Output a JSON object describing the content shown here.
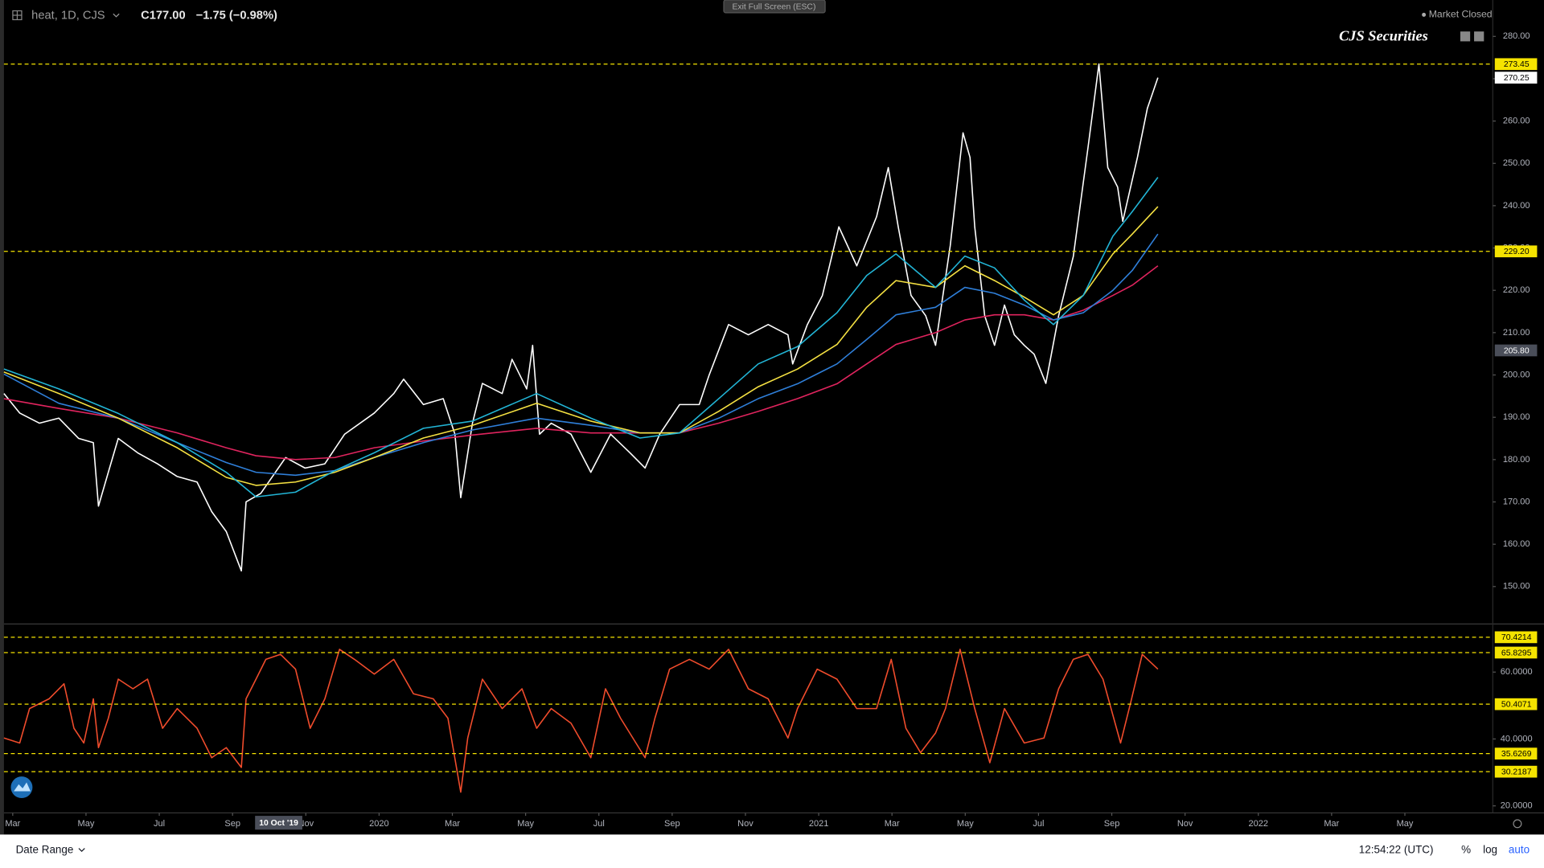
{
  "header": {
    "symbol": "heat, 1D, CJS",
    "close": "C177.00",
    "change": "−1.75 (−0.98%)",
    "exit_fullscreen": "Exit Full Screen (ESC)",
    "market_status": "Market Closed",
    "watermark": "CJS Securities"
  },
  "footer": {
    "date_range": "Date Range",
    "time": "12:54:22 (UTC)",
    "percent": "%",
    "log": "log",
    "auto": "auto"
  },
  "chart_data": [
    {
      "type": "line",
      "xlim": [
        -0.24,
        40.4
      ],
      "ylim": [
        141.4,
        288.6
      ],
      "grid": false,
      "yticks": [
        {
          "value": 150,
          "label": "150.00"
        },
        {
          "value": 160,
          "label": "160.00"
        },
        {
          "value": 170,
          "label": "170.00"
        },
        {
          "value": 180,
          "label": "180.00"
        },
        {
          "value": 190,
          "label": "190.00"
        },
        {
          "value": 200,
          "label": "200.00"
        },
        {
          "value": 210,
          "label": "210.00"
        },
        {
          "value": 220,
          "label": "220.00"
        },
        {
          "value": 230,
          "label": "230.00"
        },
        {
          "value": 240,
          "label": "240.00"
        },
        {
          "value": 250,
          "label": "250.00"
        },
        {
          "value": 260,
          "label": "260.00"
        },
        {
          "value": 270,
          "label": "270.00"
        },
        {
          "value": 280,
          "label": "280.00"
        }
      ],
      "levels": [
        {
          "value": 273.45,
          "label": "273.45"
        },
        {
          "value": 229.2,
          "label": "229.20"
        }
      ],
      "level_color": "#f5e300",
      "last_price": {
        "value": 270.25,
        "label": "270.25"
      },
      "crosshair_y": {
        "value": 205.8,
        "label": "205.80"
      },
      "series": [
        {
          "color": "#ffffff",
          "x": [
            -0.24,
            0.19,
            0.73,
            1.26,
            1.8,
            2.2,
            2.34,
            2.61,
            2.88,
            3.41,
            3.95,
            4.49,
            5.03,
            5.43,
            5.83,
            6.24,
            6.37,
            6.77,
            7.45,
            7.98,
            8.52,
            9.06,
            9.87,
            10.4,
            10.67,
            11.21,
            11.75,
            12.07,
            12.23,
            12.55,
            12.82,
            13.36,
            13.63,
            14.03,
            14.19,
            14.38,
            14.7,
            15.24,
            15.78,
            16.32,
            16.85,
            17.26,
            17.66,
            18.2,
            18.74,
            19.01,
            19.54,
            20.08,
            20.62,
            21.16,
            21.29,
            21.69,
            22.1,
            22.55,
            23.04,
            23.58,
            23.9,
            24.17,
            24.52,
            24.92,
            25.19,
            25.59,
            25.94,
            26.13,
            26.26,
            26.53,
            26.8,
            27.07,
            27.34,
            27.61,
            27.88,
            28.2,
            28.55,
            28.95,
            29.35,
            29.65,
            29.89,
            30.16,
            30.3,
            30.7,
            30.97,
            31.26
          ],
          "values": [
            195.6,
            191,
            188.6,
            189.8,
            185,
            184,
            169,
            177,
            185,
            181.6,
            179,
            176,
            174.7,
            167.7,
            163,
            153.7,
            170,
            172,
            180.5,
            178,
            179,
            186,
            191,
            195.6,
            199,
            193,
            194.4,
            186,
            171,
            188.6,
            198,
            195.6,
            203.7,
            196.7,
            207,
            186,
            188.6,
            186,
            177,
            186,
            181.6,
            178,
            186,
            193,
            193,
            200,
            211.9,
            209.5,
            211.9,
            209.5,
            202.6,
            211.9,
            218.8,
            235,
            225.8,
            237.4,
            249,
            235,
            218.8,
            214,
            207,
            230.5,
            257.2,
            251.4,
            235,
            214,
            207,
            216.5,
            209.5,
            207,
            204.9,
            198,
            214,
            228,
            253.7,
            273.45,
            249,
            244.4,
            236.3,
            251.4,
            263,
            270.25
          ]
        },
        {
          "color": "#e0245e",
          "x": [
            -0.24,
            1.26,
            2.88,
            4.49,
            5.83,
            6.64,
            7.72,
            8.79,
            9.87,
            11.21,
            12.55,
            14.3,
            15.78,
            17.12,
            18.2,
            19.27,
            20.35,
            21.42,
            22.5,
            23.31,
            24.11,
            25.19,
            25.99,
            26.8,
            27.61,
            28.41,
            29.22,
            30.03,
            30.56,
            31.26
          ],
          "values": [
            194.4,
            192.1,
            189.8,
            186.3,
            182.8,
            180.9,
            180,
            180.5,
            182.8,
            184.4,
            185.8,
            187.4,
            186.3,
            186.3,
            186.3,
            188.6,
            191.4,
            194.4,
            197.9,
            202.6,
            207.2,
            210,
            213,
            214.2,
            214.2,
            213,
            215.3,
            218.8,
            221.2,
            225.8
          ]
        },
        {
          "color": "#2f7fd9",
          "x": [
            -0.24,
            1.26,
            2.88,
            4.49,
            5.83,
            6.64,
            7.72,
            8.79,
            9.87,
            11.21,
            12.55,
            14.3,
            15.78,
            17.12,
            18.2,
            19.27,
            20.35,
            21.42,
            22.5,
            23.31,
            24.11,
            25.19,
            25.99,
            26.8,
            27.61,
            28.41,
            29.22,
            30.03,
            30.56,
            31.26
          ],
          "values": [
            200.2,
            193.3,
            189.8,
            184,
            179.3,
            177,
            176.3,
            177.4,
            180.5,
            184,
            187,
            189.8,
            188.1,
            186.3,
            186.3,
            189.8,
            194.4,
            197.9,
            202.6,
            208.4,
            214.2,
            216,
            220.7,
            219.3,
            216.5,
            213,
            214.7,
            220,
            224.7,
            233.3
          ]
        },
        {
          "color": "#f5e142",
          "x": [
            -0.24,
            1.26,
            2.88,
            4.49,
            5.83,
            6.64,
            7.72,
            8.79,
            9.87,
            11.21,
            12.55,
            14.3,
            15.78,
            17.12,
            18.2,
            19.27,
            20.35,
            21.42,
            22.5,
            23.31,
            24.11,
            25.19,
            25.99,
            26.8,
            27.61,
            28.41,
            29.22,
            30.03,
            30.56,
            31.26
          ],
          "values": [
            200.7,
            195.6,
            189.8,
            182.8,
            175.8,
            173.9,
            174.7,
            177,
            180.5,
            185.1,
            188.1,
            193.3,
            189.1,
            186.3,
            186.3,
            191.4,
            197.2,
            201.4,
            207.2,
            216,
            222.3,
            220.7,
            225.8,
            222.3,
            218.4,
            214.2,
            218.8,
            228.6,
            233.3,
            239.8
          ]
        },
        {
          "color": "#22b5d6",
          "x": [
            -0.24,
            1.26,
            2.88,
            4.49,
            5.83,
            6.64,
            7.72,
            8.79,
            9.87,
            11.21,
            12.55,
            14.3,
            15.78,
            17.12,
            18.2,
            19.27,
            20.35,
            21.42,
            22.5,
            23.31,
            24.11,
            25.19,
            25.99,
            26.8,
            27.61,
            28.41,
            29.22,
            30.03,
            30.56,
            31.26
          ],
          "values": [
            201.4,
            196.7,
            190.9,
            184,
            177,
            171.2,
            172.3,
            177.4,
            181.6,
            187.4,
            189.1,
            195.6,
            189.8,
            185.1,
            186.3,
            194.4,
            202.6,
            206.7,
            214.7,
            223.5,
            228.6,
            220.7,
            228.1,
            225.3,
            217.7,
            211.9,
            218.8,
            232.8,
            238.6,
            246.7
          ]
        }
      ]
    },
    {
      "type": "line",
      "xlim": [
        -0.24,
        40.4
      ],
      "ylim": [
        17.9,
        74.1
      ],
      "grid": false,
      "yticks": [
        {
          "value": 20,
          "label": "20.0000"
        },
        {
          "value": 40,
          "label": "40.0000"
        },
        {
          "value": 60,
          "label": "60.0000"
        }
      ],
      "levels": [
        {
          "value": 70.4214,
          "label": "70.4214"
        },
        {
          "value": 65.8295,
          "label": "65.8295"
        },
        {
          "value": 50.4071,
          "label": "50.4071"
        },
        {
          "value": 35.6269,
          "label": "35.6269"
        },
        {
          "value": 30.2187,
          "label": "30.2187"
        }
      ],
      "level_color": "#f5e300",
      "xticks": [
        {
          "value": 0,
          "label": "Mar"
        },
        {
          "value": 2,
          "label": "May"
        },
        {
          "value": 4,
          "label": "Jul"
        },
        {
          "value": 6,
          "label": "Sep"
        },
        {
          "value": 8,
          "label": "Nov"
        },
        {
          "value": 10,
          "label": "2020"
        },
        {
          "value": 12,
          "label": "Mar"
        },
        {
          "value": 14,
          "label": "May"
        },
        {
          "value": 16,
          "label": "Jul"
        },
        {
          "value": 18,
          "label": "Sep"
        },
        {
          "value": 20,
          "label": "Nov"
        },
        {
          "value": 22,
          "label": "2021"
        },
        {
          "value": 24,
          "label": "Mar"
        },
        {
          "value": 26,
          "label": "May"
        },
        {
          "value": 28,
          "label": "Jul"
        },
        {
          "value": 30,
          "label": "Sep"
        },
        {
          "value": 32,
          "label": "Nov"
        },
        {
          "value": 34,
          "label": "2022"
        },
        {
          "value": 36,
          "label": "Mar"
        },
        {
          "value": 38,
          "label": "May"
        }
      ],
      "crosshair_x": {
        "value": 7.26,
        "label": "10 Oct '19"
      },
      "series": [
        {
          "color": "#f04c2c",
          "x": [
            -0.24,
            0.19,
            0.46,
            0.99,
            1.4,
            1.67,
            1.94,
            2.2,
            2.34,
            2.61,
            2.88,
            3.28,
            3.68,
            4.09,
            4.49,
            5.03,
            5.43,
            5.83,
            6.24,
            6.37,
            6.64,
            6.91,
            7.31,
            7.72,
            8.12,
            8.52,
            8.92,
            9.33,
            9.87,
            10.4,
            10.94,
            11.48,
            11.88,
            12.23,
            12.42,
            12.82,
            13.36,
            13.9,
            14.3,
            14.7,
            15.24,
            15.78,
            16.18,
            16.59,
            17.26,
            17.53,
            17.93,
            18.47,
            19.01,
            19.54,
            20.08,
            20.62,
            21.16,
            21.42,
            21.96,
            22.5,
            23.04,
            23.58,
            23.98,
            24.38,
            24.78,
            25.19,
            25.46,
            25.86,
            26.26,
            26.67,
            27.07,
            27.61,
            28.15,
            28.55,
            28.95,
            29.35,
            29.76,
            30.24,
            30.51,
            30.83,
            31.26
          ],
          "values": [
            40.3,
            38.8,
            49.1,
            52,
            56.5,
            43.2,
            38.8,
            52,
            37.4,
            46.2,
            57.9,
            55,
            57.9,
            43.2,
            49.1,
            43.2,
            34.4,
            37.4,
            31.5,
            52,
            57.9,
            63.8,
            65.3,
            60.9,
            43.2,
            52,
            66.8,
            63.8,
            59.4,
            63.8,
            53.5,
            52,
            46.2,
            24.1,
            40.3,
            57.9,
            49.1,
            55,
            43.2,
            49.1,
            44.7,
            34.4,
            55,
            46.2,
            34.4,
            46.2,
            60.9,
            63.8,
            60.9,
            66.8,
            55,
            52,
            40.3,
            49.1,
            60.9,
            57.9,
            49.1,
            49.1,
            63.8,
            43.2,
            35.9,
            41.8,
            49.1,
            66.8,
            49.1,
            32.9,
            49.1,
            38.8,
            40.3,
            55,
            63.8,
            65.3,
            57.9,
            38.8,
            50.6,
            65.3,
            60.9
          ]
        }
      ]
    }
  ]
}
